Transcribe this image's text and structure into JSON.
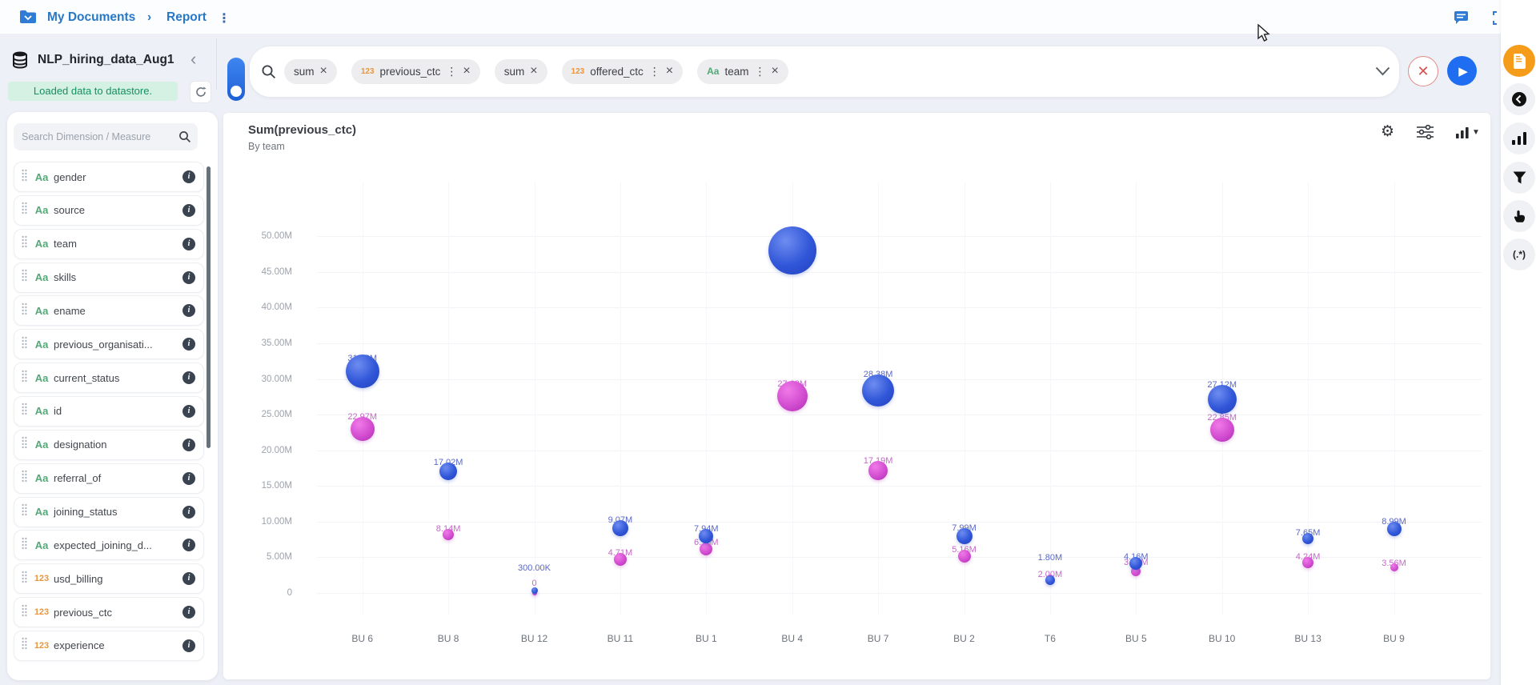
{
  "top_bar": {
    "breadcrumb_folder": "My Documents",
    "breadcrumb_sep": "›",
    "breadcrumb_page": "Report",
    "kebab": "⋮"
  },
  "dataset_panel": {
    "name": "NLP_hiring_data_Aug1",
    "collapse_glyph": "‹",
    "status": "Loaded data to datastore.",
    "search_placeholder": "Search Dimension / Measure",
    "fields": [
      {
        "name": "gender",
        "type": "Aa"
      },
      {
        "name": "source",
        "type": "Aa"
      },
      {
        "name": "team",
        "type": "Aa"
      },
      {
        "name": "skills",
        "type": "Aa"
      },
      {
        "name": "ename",
        "type": "Aa"
      },
      {
        "name": "previous_organisati...",
        "type": "Aa"
      },
      {
        "name": "current_status",
        "type": "Aa"
      },
      {
        "name": "id",
        "type": "Aa"
      },
      {
        "name": "designation",
        "type": "Aa"
      },
      {
        "name": "referral_of",
        "type": "Aa"
      },
      {
        "name": "joining_status",
        "type": "Aa"
      },
      {
        "name": "expected_joining_d...",
        "type": "Aa"
      },
      {
        "name": "usd_billing",
        "type": "123"
      },
      {
        "name": "previous_ctc",
        "type": "123"
      },
      {
        "name": "experience",
        "type": "123"
      }
    ]
  },
  "query_bar": {
    "chips": [
      {
        "text": "sum"
      },
      {
        "text": "previous_ctc",
        "badge": "123",
        "menu": true
      },
      {
        "text": "sum"
      },
      {
        "text": "offered_ctc",
        "badge": "123",
        "menu": true
      },
      {
        "text": "team",
        "badge": "Aa",
        "menu": true
      }
    ],
    "run_glyph": "▶",
    "clear_glyph": "✕"
  },
  "right_rail": {
    "regex_label": "(.*)"
  },
  "chart_header": {
    "title": "Sum(previous_ctc)",
    "subtitle": "By team"
  },
  "colors": {
    "accent_blue": "#1f6ef2",
    "breadcrumb_blue": "#2878c8",
    "bubble_blue": "#3a5bd9",
    "bubble_magenta": "#d650d2",
    "badge_green": "#53a878",
    "badge_orange": "#e8963f",
    "status_green_bg": "#d4f1e4",
    "status_green_text": "#17905e",
    "rail_orange": "#f59d1b"
  },
  "chart_data": {
    "type": "scatter",
    "title": "Sum(previous_ctc)",
    "subtitle": "By team",
    "x_categories": [
      "BU 6",
      "BU 8",
      "BU 12",
      "BU 11",
      "BU 1",
      "BU 4",
      "BU 7",
      "BU 2",
      "T6",
      "BU 5",
      "BU 10",
      "BU 13",
      "BU 9"
    ],
    "y_tick_values": [
      0,
      5,
      10,
      15,
      20,
      25,
      30,
      35,
      40,
      45,
      50
    ],
    "y_tick_labels": [
      "0",
      "5.00M",
      "10.00M",
      "15.00M",
      "20.00M",
      "25.00M",
      "30.00M",
      "35.00M",
      "40.00M",
      "45.00M",
      "50.00M"
    ],
    "ylim": [
      0,
      52
    ],
    "y_unit": "M",
    "grid": true,
    "legend": "none",
    "series": [
      {
        "name": "sum(previous_ctc)",
        "color": "#3a5bd9",
        "points": [
          {
            "x": "BU 6",
            "value_m": 31.02,
            "label": "31.02M",
            "r": 21,
            "label_dy": 5
          },
          {
            "x": "BU 8",
            "value_m": 17.02,
            "label": "17.02M",
            "r": 11,
            "label_dy": 0
          },
          {
            "x": "BU 12",
            "value_m": 0.3,
            "label": "300.00K",
            "r": 4,
            "label_dy": -24
          },
          {
            "x": "BU 11",
            "value_m": 9.07,
            "label": "9.07M",
            "r": 10,
            "label_dy": 0
          },
          {
            "x": "BU 1",
            "value_m": 7.94,
            "label": "7.94M",
            "r": 9,
            "label_dy": 0
          },
          {
            "x": "BU 4",
            "value_m": 48.02,
            "label": "48.02M",
            "r": 30,
            "label_dy": 30
          },
          {
            "x": "BU 7",
            "value_m": 28.38,
            "label": "28.38M",
            "r": 20,
            "label_dy": 0
          },
          {
            "x": "BU 2",
            "value_m": 7.99,
            "label": "7.99M",
            "r": 10,
            "label_dy": 0
          },
          {
            "x": "T6",
            "value_m": 1.8,
            "label": "1.80M",
            "r": 6,
            "label_dy": -22
          },
          {
            "x": "BU 5",
            "value_m": 4.16,
            "label": "4.16M",
            "r": 8,
            "label_dy": 0
          },
          {
            "x": "BU 10",
            "value_m": 27.12,
            "label": "27.12M",
            "r": 18,
            "label_dy": 0
          },
          {
            "x": "BU 13",
            "value_m": 7.65,
            "label": "7.65M",
            "r": 7,
            "label_dy": 0
          },
          {
            "x": "BU 9",
            "value_m": 8.99,
            "label": "8.99M",
            "r": 9,
            "label_dy": 0
          }
        ]
      },
      {
        "name": "sum(offered_ctc)",
        "color": "#d650d2",
        "points": [
          {
            "x": "BU 6",
            "value_m": 22.97,
            "label": "22.97M",
            "r": 15,
            "label_dy": 0
          },
          {
            "x": "BU 8",
            "value_m": 8.14,
            "label": "8.14M",
            "r": 7,
            "label_dy": 0
          },
          {
            "x": "BU 12",
            "value_m": 0,
            "label": "0",
            "r": 3,
            "label_dy": -9
          },
          {
            "x": "BU 11",
            "value_m": 4.71,
            "label": "4.71M",
            "r": 8,
            "label_dy": 0
          },
          {
            "x": "BU 1",
            "value_m": 6.16,
            "label": "6.16M",
            "r": 8,
            "label_dy": 0
          },
          {
            "x": "BU 4",
            "value_m": 27.62,
            "label": "27.62M",
            "r": 19,
            "label_dy": 4
          },
          {
            "x": "BU 7",
            "value_m": 17.19,
            "label": "17.19M",
            "r": 12,
            "label_dy": 0
          },
          {
            "x": "BU 2",
            "value_m": 5.16,
            "label": "5.16M",
            "r": 8,
            "label_dy": 0
          },
          {
            "x": "T6",
            "value_m": 2.0,
            "label": "2.00M",
            "r": 5,
            "label_dy": 0
          },
          {
            "x": "BU 5",
            "value_m": 3.08,
            "label": "3.08M",
            "r": 6,
            "label_dy": -5
          },
          {
            "x": "BU 10",
            "value_m": 22.85,
            "label": "22.85M",
            "r": 15,
            "label_dy": 0
          },
          {
            "x": "BU 13",
            "value_m": 4.24,
            "label": "4.24M",
            "r": 7,
            "label_dy": 0
          },
          {
            "x": "BU 9",
            "value_m": 3.56,
            "label": "3.56M",
            "r": 5,
            "label_dy": 0
          }
        ]
      }
    ]
  }
}
